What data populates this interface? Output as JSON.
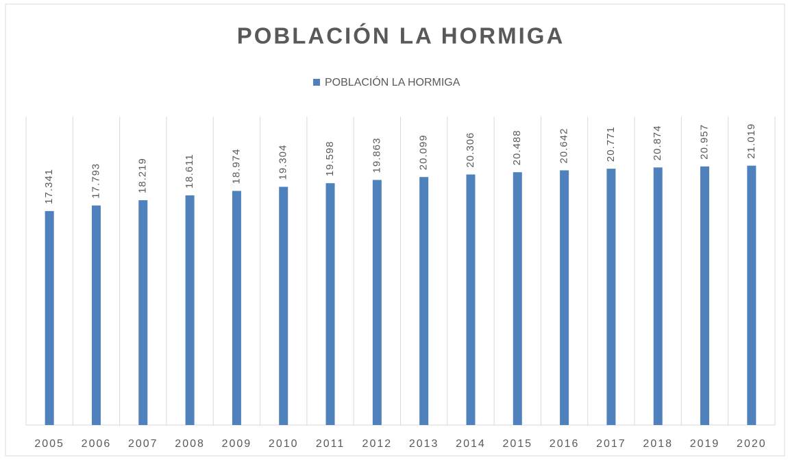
{
  "chart_data": {
    "type": "bar",
    "title": "POBLACIÓN LA HORMIGA",
    "series": [
      {
        "name": "POBLACIÓN LA HORMIGA",
        "color": "#4f81bd",
        "values": [
          17341,
          17793,
          18219,
          18611,
          18974,
          19304,
          19598,
          19863,
          20099,
          20306,
          20488,
          20642,
          20771,
          20874,
          20957,
          21019
        ],
        "value_labels": [
          "17.341",
          "17.793",
          "18.219",
          "18.611",
          "18.974",
          "19.304",
          "19.598",
          "19.863",
          "20.099",
          "20.306",
          "20.488",
          "20.642",
          "20.771",
          "20.874",
          "20.957",
          "21.019"
        ]
      }
    ],
    "categories": [
      "2005",
      "2006",
      "2007",
      "2008",
      "2009",
      "2010",
      "2011",
      "2012",
      "2013",
      "2014",
      "2015",
      "2016",
      "2017",
      "2018",
      "2019",
      "2020"
    ],
    "ylim": [
      0,
      25000
    ],
    "grid": true
  }
}
